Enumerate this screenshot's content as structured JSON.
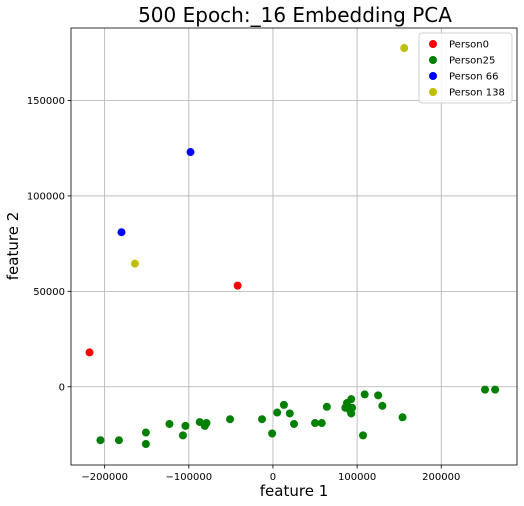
{
  "chart_data": {
    "type": "scatter",
    "title": "500 Epoch:_16 Embedding PCA",
    "xlabel": "feature 1",
    "ylabel": "feature 2",
    "xlim": [
      -240000,
      290000
    ],
    "ylim": [
      -41000,
      188000
    ],
    "xticks": [
      {
        "value": -200000,
        "label": "−200000"
      },
      {
        "value": -100000,
        "label": "−100000"
      },
      {
        "value": 0,
        "label": "0"
      },
      {
        "value": 100000,
        "label": "100000"
      },
      {
        "value": 200000,
        "label": "200000"
      }
    ],
    "yticks": [
      {
        "value": 0,
        "label": "0"
      },
      {
        "value": 50000,
        "label": "50000"
      },
      {
        "value": 100000,
        "label": "100000"
      },
      {
        "value": 150000,
        "label": "150000"
      }
    ],
    "grid": true,
    "legend_position": "top-right",
    "series": [
      {
        "name": "Person0",
        "color": "#ff0000",
        "points": [
          [
            -218000,
            18000
          ],
          [
            -42000,
            53000
          ]
        ]
      },
      {
        "name": "Person25",
        "color": "#008000",
        "points": [
          [
            -205000,
            -28000
          ],
          [
            -183000,
            -28000
          ],
          [
            -151000,
            -30000
          ],
          [
            -151000,
            -24000
          ],
          [
            -123000,
            -19500
          ],
          [
            -107000,
            -25500
          ],
          [
            -104000,
            -20500
          ],
          [
            -87000,
            -18500
          ],
          [
            -81000,
            -20500
          ],
          [
            -79000,
            -19000
          ],
          [
            -51000,
            -17000
          ],
          [
            -13000,
            -17000
          ],
          [
            -1000,
            -24500
          ],
          [
            5000,
            -13500
          ],
          [
            13000,
            -9500
          ],
          [
            20000,
            -14000
          ],
          [
            25000,
            -19500
          ],
          [
            50000,
            -19000
          ],
          [
            58000,
            -19000
          ],
          [
            64000,
            -10500
          ],
          [
            86000,
            -11000
          ],
          [
            88000,
            -8500
          ],
          [
            91000,
            -12000
          ],
          [
            93000,
            -14000
          ],
          [
            93000,
            -6500
          ],
          [
            94000,
            -11000
          ],
          [
            107000,
            -25500
          ],
          [
            109000,
            -4000
          ],
          [
            125000,
            -4500
          ],
          [
            130000,
            -10000
          ],
          [
            154000,
            -16000
          ],
          [
            252000,
            -1500
          ],
          [
            264000,
            -1500
          ]
        ]
      },
      {
        "name": "Person 66",
        "color": "#0000ff",
        "points": [
          [
            -180000,
            81000
          ],
          [
            -98000,
            123000
          ]
        ]
      },
      {
        "name": "Person 138",
        "color": "#bfbf00",
        "points": [
          [
            -164000,
            64500
          ],
          [
            156000,
            177500
          ]
        ]
      }
    ]
  }
}
